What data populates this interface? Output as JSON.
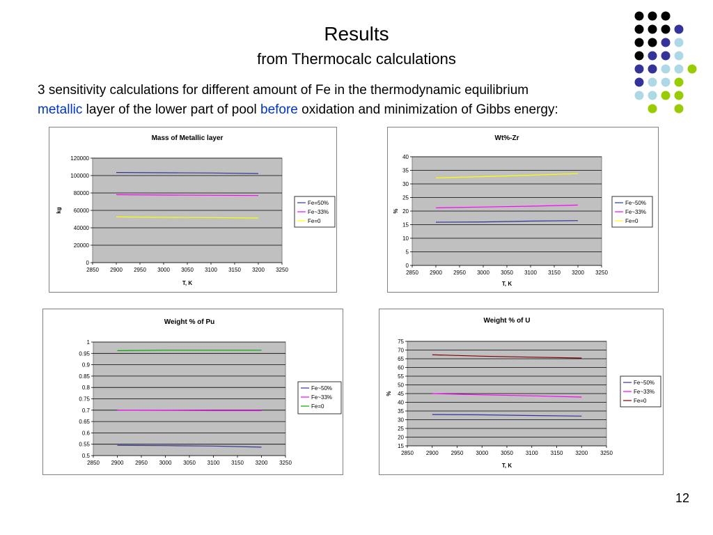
{
  "slide": {
    "title": "Results",
    "subtitle": "from Thermocalc calculations",
    "intro": {
      "part1": "3 sensitivity calculations for different amount of  Fe in the thermodynamic equilibrium",
      "metallic": "metallic",
      "part2": " layer of the lower part of pool ",
      "before": "before",
      "part3": " oxidation and minimization of Gibbs energy:"
    },
    "page_number": "12"
  },
  "colors": {
    "accent_blue": "#0033cc",
    "dot_black": "#000000",
    "dot_navy": "#333399",
    "dot_lightblue": "#add8e6",
    "dot_green": "#99cc00",
    "plot_bg": "#c0c0c0"
  },
  "chart_data": [
    {
      "type": "line",
      "title": "Mass of Metallic layer",
      "xlabel": "T, K",
      "ylabel": "kg",
      "xlim": [
        2850,
        3250
      ],
      "ylim": [
        0,
        120000
      ],
      "xticks": [
        "2850",
        "2900",
        "2950",
        "3000",
        "3050",
        "3100",
        "3150",
        "3200",
        "3250"
      ],
      "yticks": [
        "0",
        "20000",
        "40000",
        "60000",
        "80000",
        "100000",
        "120000"
      ],
      "grid": true,
      "legend": "right",
      "series": [
        {
          "name": "Fe=50%",
          "color": "#333399",
          "x": [
            2900,
            3000,
            3100,
            3200
          ],
          "y": [
            103500,
            103200,
            103000,
            102300
          ]
        },
        {
          "name": "Fe~33%",
          "color": "#ff00ff",
          "x": [
            2900,
            3000,
            3100,
            3200
          ],
          "y": [
            78000,
            77600,
            77400,
            77000
          ]
        },
        {
          "name": "Fe=0",
          "color": "#ffff00",
          "x": [
            2900,
            3000,
            3100,
            3200
          ],
          "y": [
            52500,
            52000,
            51800,
            51200
          ]
        }
      ]
    },
    {
      "type": "line",
      "title": "Wt%-Zr",
      "xlabel": "T, K",
      "ylabel": "%",
      "xlim": [
        2850,
        3250
      ],
      "ylim": [
        0,
        40
      ],
      "xticks": [
        "2850",
        "2900",
        "2950",
        "3000",
        "3050",
        "3100",
        "3150",
        "3200",
        "3250"
      ],
      "yticks": [
        "0",
        "5",
        "10",
        "15",
        "20",
        "25",
        "30",
        "35",
        "40"
      ],
      "grid": true,
      "legend": "right",
      "series": [
        {
          "name": "Fe~50%",
          "color": "#333399",
          "x": [
            2900,
            3000,
            3100,
            3200
          ],
          "y": [
            15.9,
            16.0,
            16.3,
            16.5
          ]
        },
        {
          "name": "Fe~33%",
          "color": "#ff00ff",
          "x": [
            2900,
            3000,
            3100,
            3200
          ],
          "y": [
            21.2,
            21.5,
            21.8,
            22.2
          ]
        },
        {
          "name": "Fe=0",
          "color": "#ffff00",
          "x": [
            2900,
            3000,
            3100,
            3200
          ],
          "y": [
            32.2,
            32.7,
            33.2,
            33.8
          ]
        }
      ]
    },
    {
      "type": "line",
      "title": "Weight % of Pu",
      "xlabel": "",
      "ylabel": "",
      "xlim": [
        2850,
        3250
      ],
      "ylim": [
        0.5,
        1
      ],
      "xticks": [
        "2850",
        "2900",
        "2950",
        "3000",
        "3050",
        "3100",
        "3150",
        "3200",
        "3250"
      ],
      "yticks": [
        "0.5",
        "0.55",
        "0.6",
        "0.65",
        "0.7",
        "0.75",
        "0.8",
        "0.85",
        "0.9",
        "0.95",
        "1"
      ],
      "grid": true,
      "legend": "right",
      "series": [
        {
          "name": "Fe~50%",
          "color": "#333399",
          "x": [
            2900,
            3000,
            3100,
            3200
          ],
          "y": [
            0.545,
            0.544,
            0.542,
            0.537
          ]
        },
        {
          "name": "Fe~33%",
          "color": "#ff00ff",
          "x": [
            2900,
            3000,
            3100,
            3200
          ],
          "y": [
            0.7,
            0.699,
            0.698,
            0.698
          ]
        },
        {
          "name": "Fe=0",
          "color": "#00aa00",
          "x": [
            2900,
            3000,
            3100,
            3200
          ],
          "y": [
            0.962,
            0.964,
            0.964,
            0.964
          ]
        }
      ]
    },
    {
      "type": "line",
      "title": "Weight % of U",
      "xlabel": "T, K",
      "ylabel": "%",
      "xlim": [
        2850,
        3250
      ],
      "ylim": [
        15,
        75
      ],
      "xticks": [
        "2850",
        "2900",
        "2950",
        "3000",
        "3050",
        "3100",
        "3150",
        "3200",
        "3250"
      ],
      "yticks": [
        "15",
        "20",
        "25",
        "30",
        "35",
        "40",
        "45",
        "50",
        "55",
        "60",
        "65",
        "70",
        "75"
      ],
      "grid": true,
      "legend": "right",
      "series": [
        {
          "name": "Fe~50%",
          "color": "#333399",
          "x": [
            2900,
            3000,
            3100,
            3200
          ],
          "y": [
            33.0,
            32.8,
            32.4,
            32.1
          ]
        },
        {
          "name": "Fe~33%",
          "color": "#ff00ff",
          "x": [
            2900,
            3000,
            3100,
            3200
          ],
          "y": [
            45.0,
            44.3,
            43.7,
            43.0
          ]
        },
        {
          "name": "Fe=0",
          "color": "#800000",
          "x": [
            2900,
            3000,
            3100,
            3200
          ],
          "y": [
            67.3,
            66.5,
            65.9,
            65.4
          ]
        }
      ]
    }
  ]
}
